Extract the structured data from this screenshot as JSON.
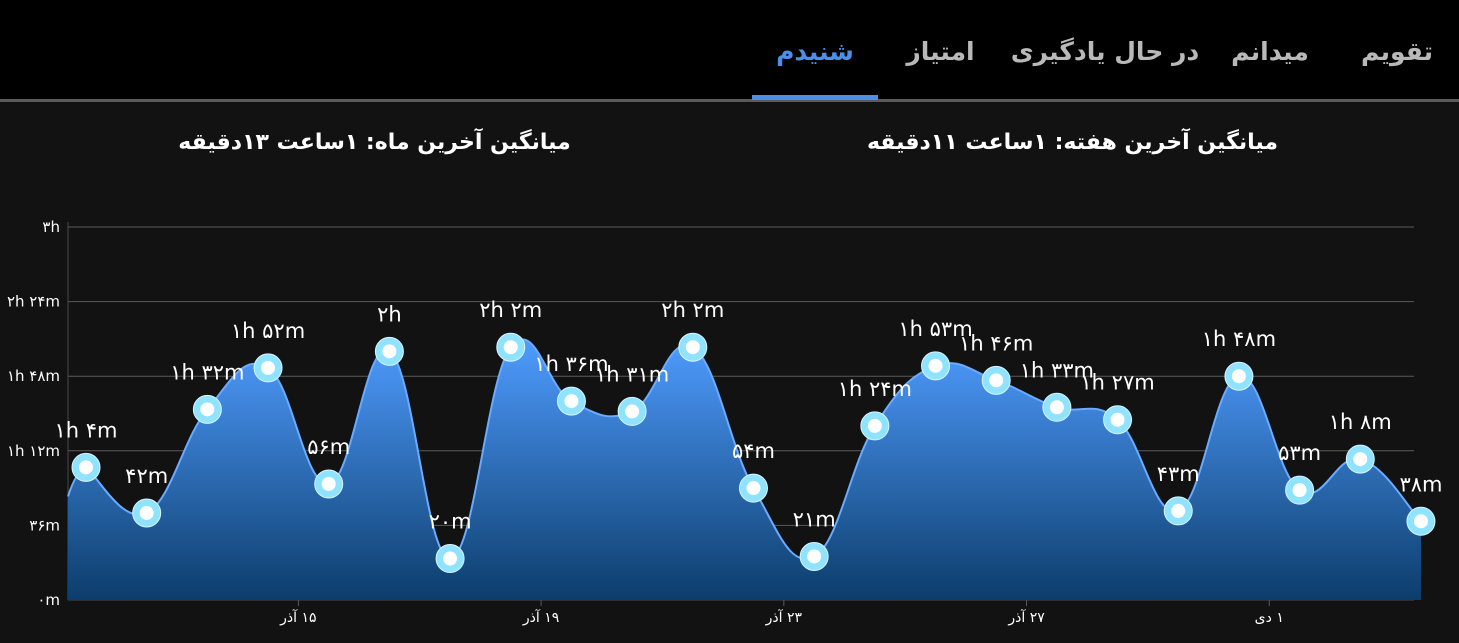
{
  "tabs": [
    {
      "label": "تقویم",
      "active": false
    },
    {
      "label": "میدانم",
      "active": false
    },
    {
      "label": "در حال یادگیری",
      "active": false
    },
    {
      "label": "امتیاز",
      "active": false
    },
    {
      "label": "شنیدم",
      "active": true
    }
  ],
  "summaries": {
    "week": "میانگین آخرین هفته: ۱ساعت  ۱۱دقیقه",
    "month": "میانگین آخرین ماه: ۱ساعت  ۱۳دقیقه"
  },
  "colors": {
    "accent": "#4d8fe6",
    "area_top": "#4f9cff",
    "area_bottom": "#0c3d6b",
    "line": "#6aaaff",
    "point_ring": "#8fe3ff",
    "background": "#121212"
  },
  "chart_data": {
    "type": "area",
    "y_unit": "minutes",
    "ylim": [
      0,
      180
    ],
    "y_ticks": [
      {
        "value": 0,
        "label": "۰m"
      },
      {
        "value": 36,
        "label": "۳۶m"
      },
      {
        "value": 72,
        "label": "۱h ۱۲m"
      },
      {
        "value": 108,
        "label": "۱h ۴۸m"
      },
      {
        "value": 144,
        "label": "۲h ۲۴m"
      },
      {
        "value": 180,
        "label": "۳h"
      }
    ],
    "x_ticks": [
      {
        "index": 3.5,
        "label": "۱۵ آذر"
      },
      {
        "index": 7.5,
        "label": "۱۹ آذر"
      },
      {
        "index": 11.5,
        "label": "۲۳ آذر"
      },
      {
        "index": 15.5,
        "label": "۲۷ آذر"
      },
      {
        "index": 19.5,
        "label": "۱ دی"
      }
    ],
    "grid": true,
    "legend": "none",
    "points": [
      {
        "value": 64,
        "label": "۱h ۴m"
      },
      {
        "value": 42,
        "label": "۴۲m"
      },
      {
        "value": 92,
        "label": "۱h ۳۲m"
      },
      {
        "value": 112,
        "label": "۱h ۵۲m"
      },
      {
        "value": 56,
        "label": "۵۶m"
      },
      {
        "value": 120,
        "label": "۲h"
      },
      {
        "value": 20,
        "label": "۲۰m"
      },
      {
        "value": 122,
        "label": "۲h ۲m"
      },
      {
        "value": 96,
        "label": "۱h ۳۶m"
      },
      {
        "value": 91,
        "label": "۱h ۳۱m"
      },
      {
        "value": 122,
        "label": "۲h ۲m"
      },
      {
        "value": 54,
        "label": "۵۴m"
      },
      {
        "value": 21,
        "label": "۲۱m"
      },
      {
        "value": 84,
        "label": "۱h ۲۴m"
      },
      {
        "value": 113,
        "label": "۱h ۵۳m"
      },
      {
        "value": 106,
        "label": "۱h ۴۶m"
      },
      {
        "value": 93,
        "label": "۱h ۳۳m"
      },
      {
        "value": 87,
        "label": "۱h ۲۷m"
      },
      {
        "value": 43,
        "label": "۴۳m"
      },
      {
        "value": 108,
        "label": "۱h ۴۸m"
      },
      {
        "value": 53,
        "label": "۵۳m"
      },
      {
        "value": 68,
        "label": "۱h ۸m"
      },
      {
        "value": 38,
        "label": "۳۸m"
      }
    ]
  }
}
